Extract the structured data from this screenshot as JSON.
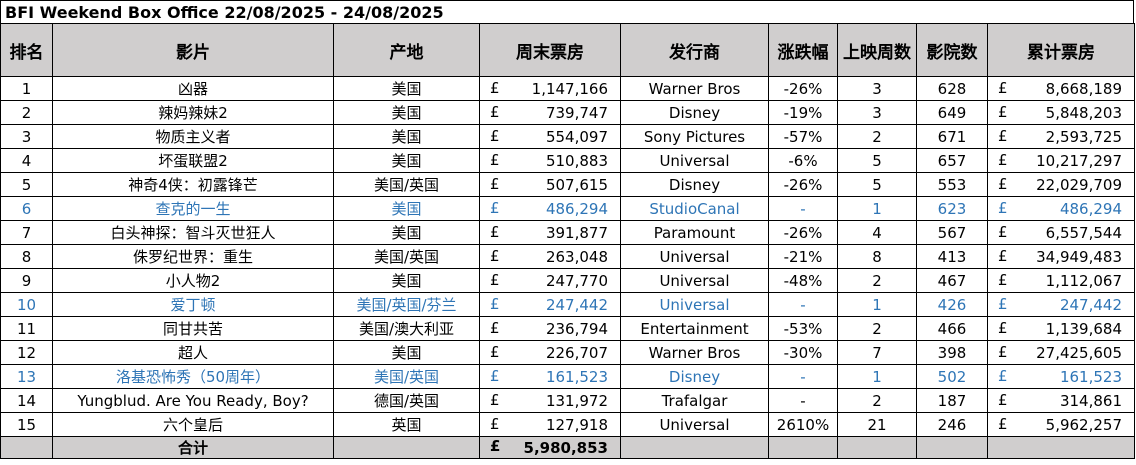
{
  "title": "BFI Weekend Box Office 22/08/2025 - 24/08/2025",
  "currency": "£",
  "headers": [
    "排名",
    "影片",
    "产地",
    "周末票房",
    "发行商",
    "涨跌幅",
    "上映周数",
    "影院数",
    "累计票房"
  ],
  "rows": [
    {
      "rank": "1",
      "film": "凶器",
      "origin": "美国",
      "weekend": "1,147,166",
      "distributor": "Warner Bros",
      "change": "-26%",
      "weeks": "3",
      "cinemas": "628",
      "total": "8,668,189",
      "new": false
    },
    {
      "rank": "2",
      "film": "辣妈辣妹2",
      "origin": "美国",
      "weekend": "739,747",
      "distributor": "Disney",
      "change": "-19%",
      "weeks": "3",
      "cinemas": "649",
      "total": "5,848,203",
      "new": false
    },
    {
      "rank": "3",
      "film": "物质主义者",
      "origin": "美国",
      "weekend": "554,097",
      "distributor": "Sony Pictures",
      "change": "-57%",
      "weeks": "2",
      "cinemas": "671",
      "total": "2,593,725",
      "new": false
    },
    {
      "rank": "4",
      "film": "坏蛋联盟2",
      "origin": "美国",
      "weekend": "510,883",
      "distributor": "Universal",
      "change": "-6%",
      "weeks": "5",
      "cinemas": "657",
      "total": "10,217,297",
      "new": false
    },
    {
      "rank": "5",
      "film": "神奇4侠：初露锋芒",
      "origin": "美国/英国",
      "weekend": "507,615",
      "distributor": "Disney",
      "change": "-26%",
      "weeks": "5",
      "cinemas": "553",
      "total": "22,029,709",
      "new": false
    },
    {
      "rank": "6",
      "film": "查克的一生",
      "origin": "美国",
      "weekend": "486,294",
      "distributor": "StudioCanal",
      "change": "-",
      "weeks": "1",
      "cinemas": "623",
      "total": "486,294",
      "new": true
    },
    {
      "rank": "7",
      "film": "白头神探：智斗灭世狂人",
      "origin": "美国",
      "weekend": "391,877",
      "distributor": "Paramount",
      "change": "-26%",
      "weeks": "4",
      "cinemas": "567",
      "total": "6,557,544",
      "new": false
    },
    {
      "rank": "8",
      "film": "侏罗纪世界：重生",
      "origin": "美国/英国",
      "weekend": "263,048",
      "distributor": "Universal",
      "change": "-21%",
      "weeks": "8",
      "cinemas": "413",
      "total": "34,949,483",
      "new": false
    },
    {
      "rank": "9",
      "film": "小人物2",
      "origin": "美国",
      "weekend": "247,770",
      "distributor": "Universal",
      "change": "-48%",
      "weeks": "2",
      "cinemas": "467",
      "total": "1,112,067",
      "new": false
    },
    {
      "rank": "10",
      "film": "爱丁顿",
      "origin": "美国/英国/芬兰",
      "weekend": "247,442",
      "distributor": "Universal",
      "change": "-",
      "weeks": "1",
      "cinemas": "426",
      "total": "247,442",
      "new": true
    },
    {
      "rank": "11",
      "film": "同甘共苦",
      "origin": "美国/澳大利亚",
      "weekend": "236,794",
      "distributor": "Entertainment",
      "change": "-53%",
      "weeks": "2",
      "cinemas": "466",
      "total": "1,139,684",
      "new": false
    },
    {
      "rank": "12",
      "film": "超人",
      "origin": "美国",
      "weekend": "226,707",
      "distributor": "Warner Bros",
      "change": "-30%",
      "weeks": "7",
      "cinemas": "398",
      "total": "27,425,605",
      "new": false
    },
    {
      "rank": "13",
      "film": "洛基恐怖秀（50周年）",
      "origin": "美国/英国",
      "weekend": "161,523",
      "distributor": "Disney",
      "change": "-",
      "weeks": "1",
      "cinemas": "502",
      "total": "161,523",
      "new": true
    },
    {
      "rank": "14",
      "film": "Yungblud. Are You Ready, Boy?",
      "origin": "德国/英国",
      "weekend": "131,972",
      "distributor": "Trafalgar",
      "change": "-",
      "weeks": "2",
      "cinemas": "187",
      "total": "314,861",
      "new": false
    },
    {
      "rank": "15",
      "film": "六个皇后",
      "origin": "英国",
      "weekend": "127,918",
      "distributor": "Universal",
      "change": "2610%",
      "weeks": "21",
      "cinemas": "246",
      "total": "5,962,257",
      "new": false
    }
  ],
  "footer": {
    "label": "合计",
    "weekend_total": "5,980,853"
  },
  "colors": {
    "header_bg": "#d0cece",
    "new_release_text": "#2e75b6",
    "grid": "#000000"
  }
}
